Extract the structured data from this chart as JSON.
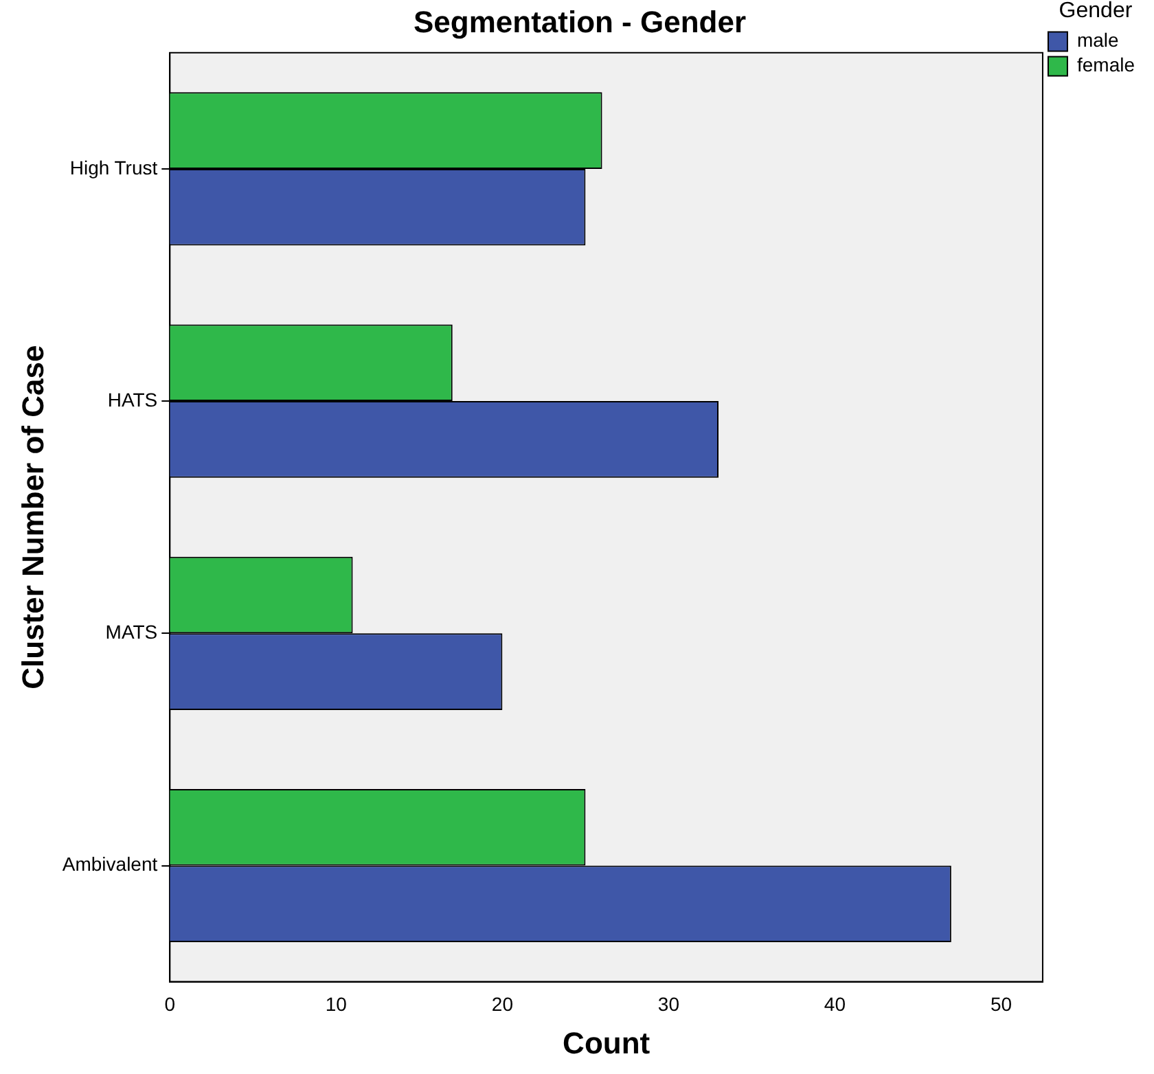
{
  "chart_data": {
    "type": "bar",
    "orientation": "horizontal",
    "title": "Segmentation - Gender",
    "xlabel": "Count",
    "ylabel": "Cluster Number of Case",
    "legend_title": "Gender",
    "legend": "top right",
    "grid": false,
    "categories": [
      "High Trust",
      "HATS",
      "MATS",
      "Ambivalent"
    ],
    "xlim": [
      0,
      52.5
    ],
    "xticks": [
      0,
      10,
      20,
      30,
      40,
      50
    ],
    "series": [
      {
        "name": "male",
        "color": "#3f57a8",
        "values": [
          25,
          33,
          20,
          47
        ]
      },
      {
        "name": "female",
        "color": "#2fb84a",
        "values": [
          26,
          17,
          11,
          25
        ]
      }
    ]
  }
}
